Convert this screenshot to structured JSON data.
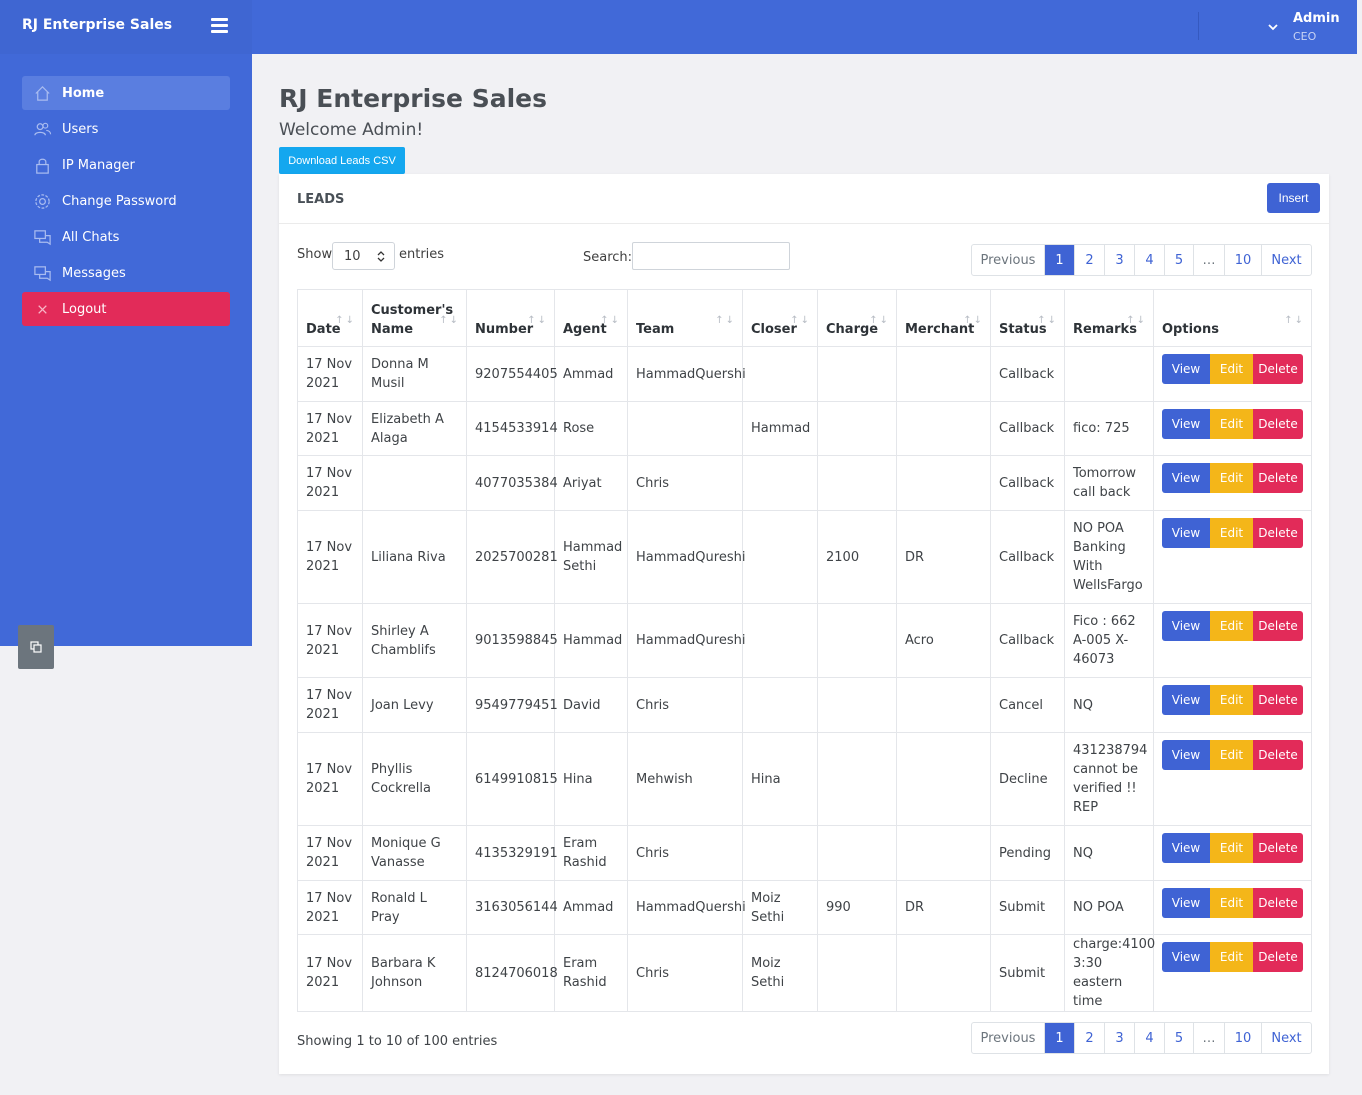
{
  "brand": {
    "title": "RJ Enterprise Sales"
  },
  "user": {
    "name": "Admin",
    "role": "CEO"
  },
  "sidebar": {
    "items": [
      {
        "label": "Home",
        "icon": "home-icon",
        "active": true
      },
      {
        "label": "Users",
        "icon": "users-icon"
      },
      {
        "label": "IP Manager",
        "icon": "lock-icon"
      },
      {
        "label": "Change Password",
        "icon": "gear-icon"
      },
      {
        "label": "All Chats",
        "icon": "chat-icon"
      },
      {
        "label": "Messages",
        "icon": "messages-icon"
      },
      {
        "label": "Logout",
        "icon": "close-icon"
      }
    ]
  },
  "page": {
    "title": "RJ Enterprise Sales",
    "welcome": "Welcome Admin!",
    "download_label": "Download Leads CSV"
  },
  "card": {
    "title": "LEADS",
    "insert_label": "Insert",
    "show_label": "Show",
    "entries_label": "entries",
    "length_value": "10",
    "search_label": "Search:",
    "search_value": "",
    "info": "Showing 1 to 10 of 100 entries"
  },
  "pagination": {
    "previous": "Previous",
    "pages": [
      "1",
      "2",
      "3",
      "4",
      "5",
      "…",
      "10"
    ],
    "current": "1",
    "next": "Next"
  },
  "table": {
    "columns": [
      "Date",
      "Customer's Name",
      "Number",
      "Agent",
      "Team",
      "Closer",
      "Charge",
      "Merchant",
      "Status",
      "Remarks",
      "Options"
    ],
    "option_labels": {
      "view": "View",
      "edit": "Edit",
      "delete": "Delete"
    },
    "rows": [
      {
        "date": "17 Nov 2021",
        "name": "Donna M Musil",
        "number": "9207554405",
        "agent": "Ammad",
        "team": "HammadQuershi",
        "closer": "",
        "charge": "",
        "merchant": "",
        "status": "Callback",
        "remarks": ""
      },
      {
        "date": "17 Nov 2021",
        "name": "Elizabeth A Alaga",
        "number": "4154533914",
        "agent": "Rose",
        "team": "",
        "closer": "Hammad",
        "charge": "",
        "merchant": "",
        "status": "Callback",
        "remarks": "fico: 725"
      },
      {
        "date": "17 Nov 2021",
        "name": "",
        "number": "4077035384",
        "agent": "Ariyat",
        "team": "Chris",
        "closer": "",
        "charge": "",
        "merchant": "",
        "status": "Callback",
        "remarks": "Tomorrow call back"
      },
      {
        "date": "17 Nov 2021",
        "name": "Liliana Riva",
        "number": "2025700281",
        "agent": "Hammad Sethi",
        "team": "HammadQureshi",
        "closer": "",
        "charge": "2100",
        "merchant": "DR",
        "status": "Callback",
        "remarks": "NO POA Banking With WellsFargo"
      },
      {
        "date": "17 Nov 2021",
        "name": "Shirley A Chamblifs",
        "number": "9013598845",
        "agent": "Hammad",
        "team": "HammadQureshi",
        "closer": "",
        "charge": "",
        "merchant": "Acro",
        "status": "Callback",
        "remarks": "Fico : 662 A-005 X-46073"
      },
      {
        "date": "17 Nov 2021",
        "name": "Joan Levy",
        "number": "9549779451",
        "agent": "David",
        "team": "Chris",
        "closer": "",
        "charge": "",
        "merchant": "",
        "status": "Cancel",
        "remarks": "NQ"
      },
      {
        "date": "17 Nov 2021",
        "name": "Phyllis Cockrella",
        "number": "6149910815",
        "agent": "Hina",
        "team": "Mehwish",
        "closer": "Hina",
        "charge": "",
        "merchant": "",
        "status": "Decline",
        "remarks": "431238794 cannot be verified !! REP"
      },
      {
        "date": "17 Nov 2021",
        "name": "Monique G Vanasse",
        "number": "4135329191",
        "agent": "Eram Rashid",
        "team": "Chris",
        "closer": "",
        "charge": "",
        "merchant": "",
        "status": "Pending",
        "remarks": "NQ"
      },
      {
        "date": "17 Nov 2021",
        "name": "Ronald L Pray",
        "number": "3163056144",
        "agent": "Ammad",
        "team": "HammadQuershi",
        "closer": "Moiz Sethi",
        "charge": "990",
        "merchant": "DR",
        "status": "Submit",
        "remarks": "NO POA"
      },
      {
        "date": "17 Nov 2021",
        "name": "Barbara K Johnson",
        "number": "8124706018",
        "agent": "Eram Rashid",
        "team": "Chris",
        "closer": "Moiz Sethi",
        "charge": "",
        "merchant": "",
        "status": "Submit",
        "remarks": "charge:4100 3:30 eastern time"
      }
    ]
  }
}
